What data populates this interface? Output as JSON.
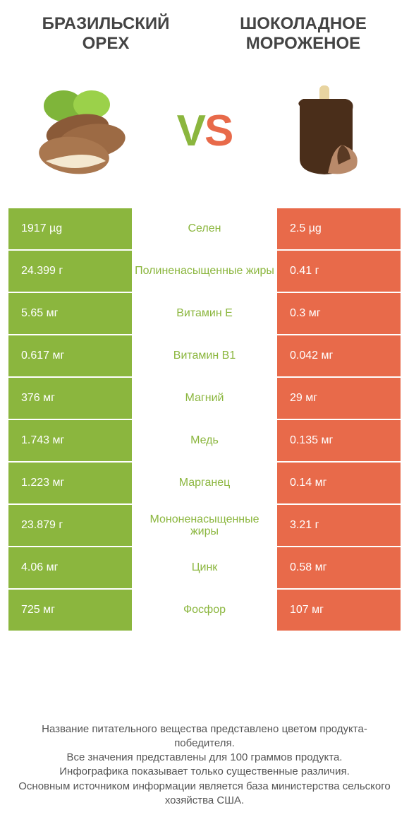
{
  "header": {
    "left_title": "БРАЗИЛЬСКИЙ ОРЕХ",
    "right_title": "ШОКОЛАДНОЕ МОРОЖЕНОЕ"
  },
  "vs": {
    "v": "V",
    "s": "S"
  },
  "colors": {
    "green": "#8bb63e",
    "orange": "#e86a4a",
    "text": "#555555",
    "bg": "#ffffff"
  },
  "rows": [
    {
      "left": "1917 µg",
      "mid": "Селен",
      "right": "2.5 µg",
      "winner": "green"
    },
    {
      "left": "24.399 г",
      "mid": "Полиненасыщенные жиры",
      "right": "0.41 г",
      "winner": "green"
    },
    {
      "left": "5.65 мг",
      "mid": "Витамин E",
      "right": "0.3 мг",
      "winner": "green"
    },
    {
      "left": "0.617 мг",
      "mid": "Витамин B1",
      "right": "0.042 мг",
      "winner": "green"
    },
    {
      "left": "376 мг",
      "mid": "Магний",
      "right": "29 мг",
      "winner": "green"
    },
    {
      "left": "1.743 мг",
      "mid": "Медь",
      "right": "0.135 мг",
      "winner": "green"
    },
    {
      "left": "1.223 мг",
      "mid": "Марганец",
      "right": "0.14 мг",
      "winner": "green"
    },
    {
      "left": "23.879 г",
      "mid": "Мононенасыщенные жиры",
      "right": "3.21 г",
      "winner": "green"
    },
    {
      "left": "4.06 мг",
      "mid": "Цинк",
      "right": "0.58 мг",
      "winner": "green"
    },
    {
      "left": "725 мг",
      "mid": "Фосфор",
      "right": "107 мг",
      "winner": "green"
    }
  ],
  "footer": {
    "line1": "Название питательного вещества представлено цветом продукта-победителя.",
    "line2": "Все значения представлены для 100 граммов продукта.",
    "line3": "Инфографика показывает только существенные различия.",
    "line4": "Основным источником информации является база министерства сельского хозяйства США."
  }
}
